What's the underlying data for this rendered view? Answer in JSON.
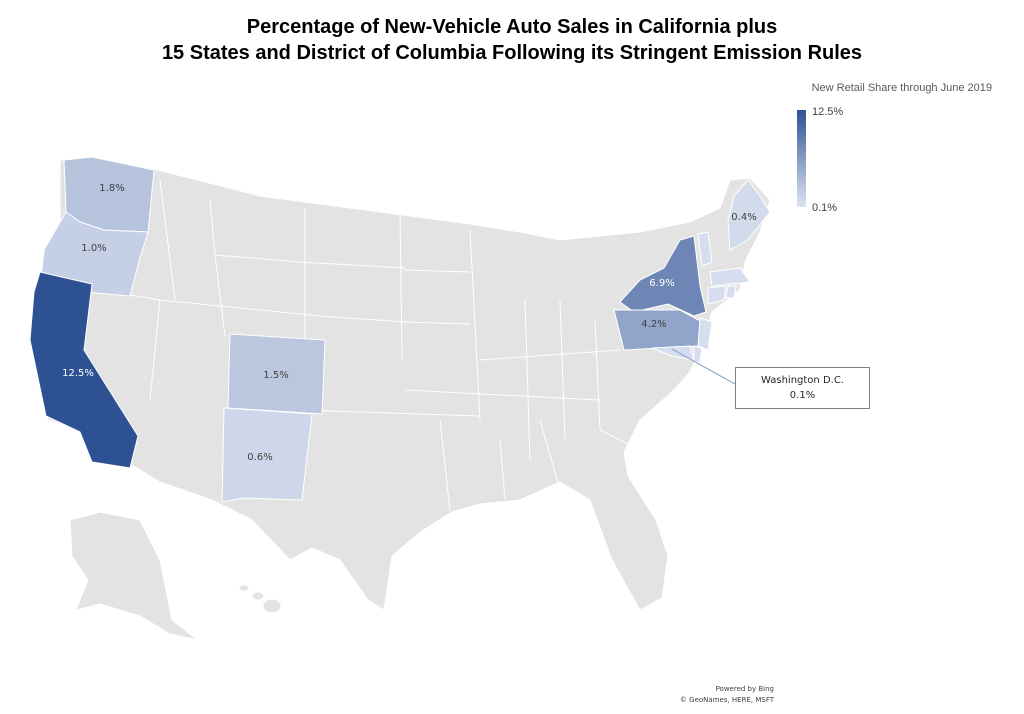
{
  "title": {
    "line1": "Percentage of New-Vehicle Auto Sales in California plus",
    "line2": "15 States and District of Columbia Following its Stringent Emission Rules"
  },
  "legend": {
    "title": "New Retail Share through June 2019",
    "max_label": "12.5%",
    "min_label": "0.1%",
    "max_value": 12.5,
    "min_value": 0.1,
    "color_high": "#2e5193",
    "color_low": "#dde4f2"
  },
  "base_color": "#e3e3e3",
  "states": [
    {
      "name": "California",
      "share": 12.5,
      "label": "12.5%"
    },
    {
      "name": "New York",
      "share": 6.9,
      "label": "6.9%"
    },
    {
      "name": "Pennsylvania",
      "share": 4.2,
      "label": "4.2%"
    },
    {
      "name": "Washington",
      "share": 1.8,
      "label": "1.8%"
    },
    {
      "name": "Colorado",
      "share": 1.5,
      "label": "1.5%"
    },
    {
      "name": "Oregon",
      "share": 1.0,
      "label": "1.0%"
    },
    {
      "name": "New Mexico",
      "share": 0.6,
      "label": "0.6%"
    },
    {
      "name": "Maine",
      "share": 0.4,
      "label": "0.4%"
    }
  ],
  "callout": {
    "line1": "Washington D.C.",
    "line2": "0.1%"
  },
  "attribution": {
    "line1": "Powered by Bing",
    "line2": "© GeoNames, HERE, MSFT"
  }
}
